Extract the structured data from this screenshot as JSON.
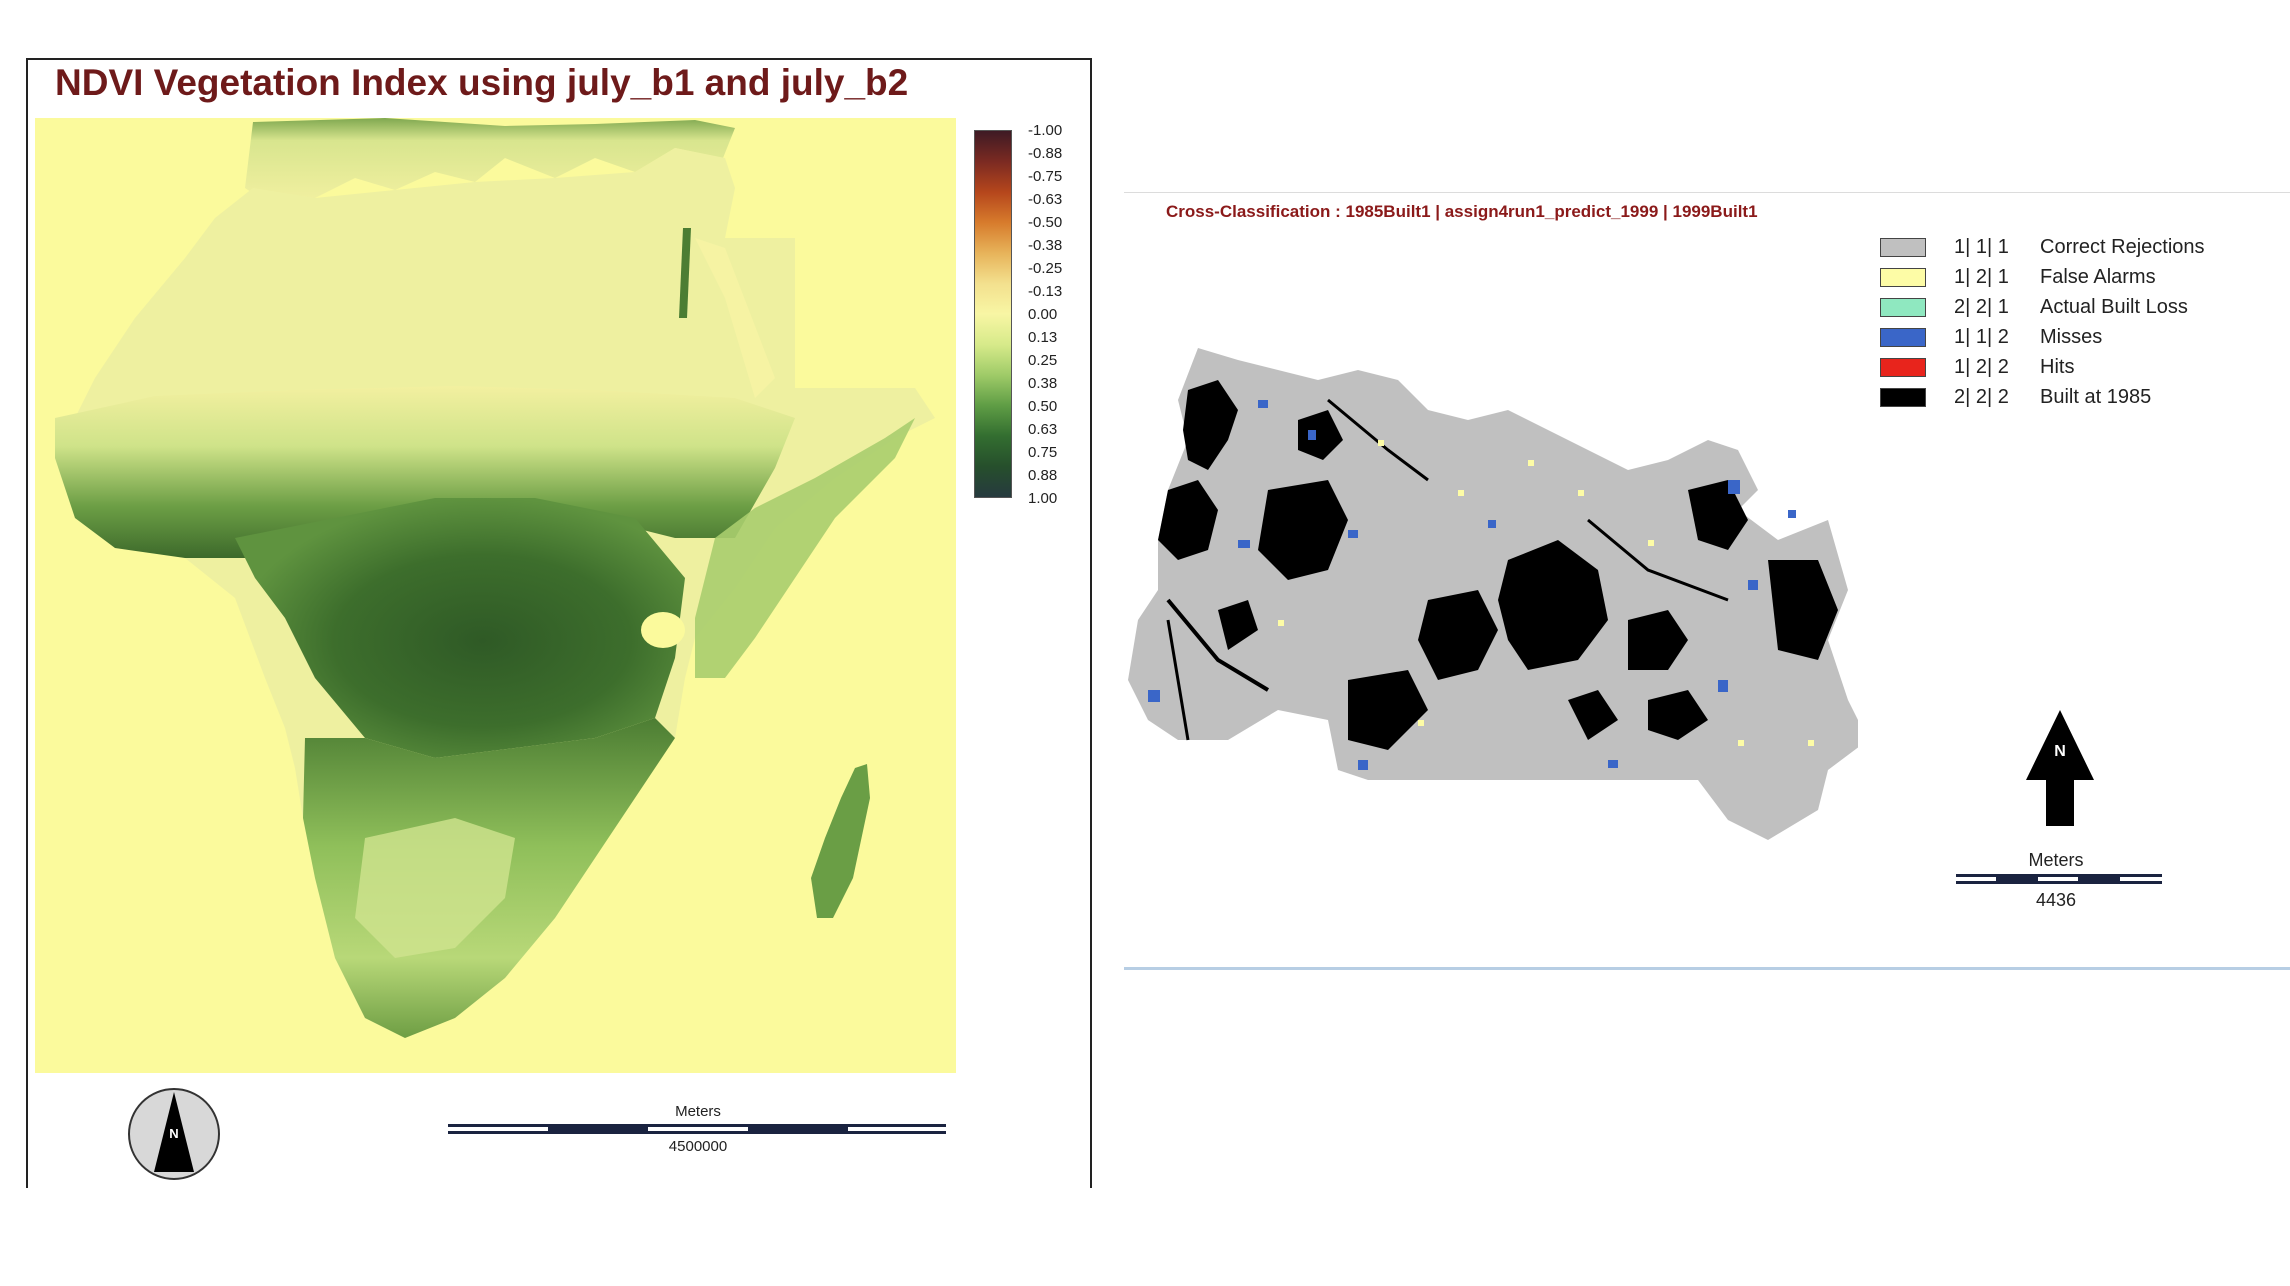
{
  "ndvi_panel": {
    "title": "NDVI Vegetation Index using july_b1 and july_b2",
    "legend_ticks": [
      "-1.00",
      "-0.88",
      "-0.75",
      "-0.63",
      "-0.50",
      "-0.38",
      "-0.25",
      "-0.13",
      "0.00",
      "0.13",
      "0.25",
      "0.38",
      "0.50",
      "0.63",
      "0.75",
      "0.88",
      "1.00"
    ],
    "ramp_colors": [
      "#3e1a24",
      "#7b2a22",
      "#b5461c",
      "#d77b2c",
      "#e7b35a",
      "#f3e08e",
      "#f8f6a4",
      "#d7ea8a",
      "#9fcb68",
      "#5f9d45",
      "#336e30",
      "#264f2c",
      "#263a3e"
    ],
    "scale_units": "Meters",
    "scale_value": "4500000",
    "north_icon": "north-arrow-circle-icon",
    "colors": {
      "background": "#fbfa9c",
      "title": "#6e1a1a",
      "forest": "#3a6b2a",
      "savanna": "#8fbf5a"
    }
  },
  "cross_panel": {
    "title": "Cross-Classification : 1985Built1 | assign4run1_predict_1999 | 1999Built1",
    "legend": [
      {
        "code": "1| 1| 1",
        "label": "Correct Rejections",
        "color": "#c0c0c0"
      },
      {
        "code": "1| 2| 1",
        "label": "False Alarms",
        "color": "#fdfca6"
      },
      {
        "code": "2| 2| 1",
        "label": "Actual Built Loss",
        "color": "#8fe8c0"
      },
      {
        "code": "1| 1| 2",
        "label": "Misses",
        "color": "#3a66c8"
      },
      {
        "code": "1| 2| 2",
        "label": "Hits",
        "color": "#e8241c"
      },
      {
        "code": "2| 2| 2",
        "label": "Built at 1985",
        "color": "#000000"
      }
    ],
    "scale_units": "Meters",
    "scale_value": "4436",
    "north_letter": "N",
    "north_icon": "north-arrow-icon"
  }
}
